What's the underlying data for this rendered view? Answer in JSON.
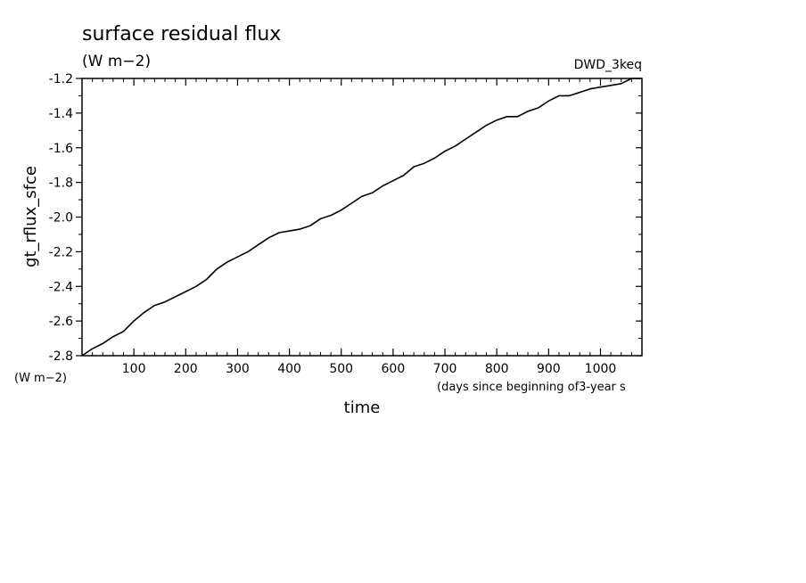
{
  "chart_data": {
    "type": "line",
    "title": "surface residual flux",
    "subtitle": "(W m−2)",
    "tag": "DWD_3keq",
    "xlabel": "time",
    "xunit": "(days since beginning of3-year s",
    "ylabel": "gt_rflux_sfce",
    "yunit": "(W m−2)",
    "xlim": [
      0,
      1080
    ],
    "ylim": [
      -2.8,
      -1.2
    ],
    "xticks": [
      100,
      200,
      300,
      400,
      500,
      600,
      700,
      800,
      900,
      1000
    ],
    "yticks": [
      "-1.2",
      "-1.4",
      "-1.6",
      "-1.8",
      "-2.0",
      "-2.2",
      "-2.4",
      "-2.6",
      "-2.8"
    ],
    "grid": false,
    "series": [
      {
        "x": [
          0,
          20,
          40,
          60,
          80,
          100,
          120,
          140,
          160,
          180,
          200,
          220,
          240,
          260,
          280,
          300,
          320,
          340,
          360,
          380,
          400,
          420,
          440,
          460,
          480,
          500,
          520,
          540,
          560,
          580,
          600,
          620,
          640,
          660,
          680,
          700,
          720,
          740,
          760,
          780,
          800,
          820,
          840,
          860,
          880,
          900,
          920,
          940,
          960,
          980,
          1000,
          1020,
          1040,
          1060,
          1080
        ],
        "y": [
          -2.8,
          -2.76,
          -2.73,
          -2.69,
          -2.66,
          -2.6,
          -2.55,
          -2.51,
          -2.49,
          -2.46,
          -2.43,
          -2.4,
          -2.36,
          -2.3,
          -2.26,
          -2.23,
          -2.2,
          -2.16,
          -2.12,
          -2.09,
          -2.08,
          -2.07,
          -2.05,
          -2.01,
          -1.99,
          -1.96,
          -1.92,
          -1.88,
          -1.86,
          -1.82,
          -1.79,
          -1.76,
          -1.71,
          -1.69,
          -1.66,
          -1.62,
          -1.59,
          -1.55,
          -1.51,
          -1.47,
          -1.44,
          -1.42,
          -1.42,
          -1.39,
          -1.37,
          -1.33,
          -1.3,
          -1.3,
          -1.28,
          -1.26,
          -1.25,
          -1.24,
          -1.23,
          -1.2,
          -1.2
        ]
      }
    ]
  }
}
